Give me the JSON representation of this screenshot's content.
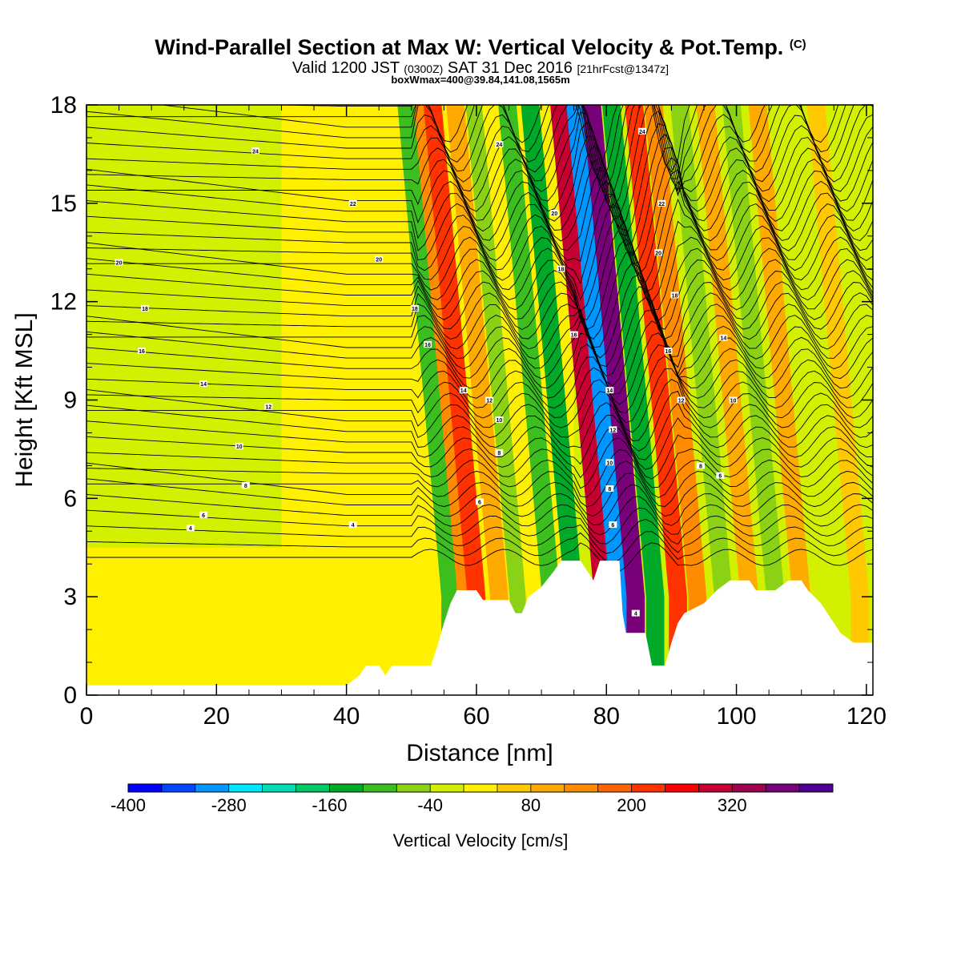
{
  "header": {
    "title_main": "Wind-Parallel Section at Max W: Vertical Velocity & Pot.Temp.",
    "title_mark": "(C)",
    "valid_prefix": "Valid 1200 JST",
    "valid_zone": "(0300Z)",
    "valid_date": "SAT 31 Dec 2016",
    "valid_fcst": "[21hrFcst@1347z]",
    "box_info": "boxWmax=400@39.84,141.08,1565m"
  },
  "chart_data": {
    "type": "heatmap",
    "xlabel": "Distance [nm]",
    "ylabel": "Height [Kft MSL]",
    "xlim": [
      0,
      121
    ],
    "ylim": [
      0,
      18
    ],
    "x_ticks": [
      "0",
      "20",
      "40",
      "60",
      "80",
      "100",
      "120"
    ],
    "y_ticks": [
      "0",
      "3",
      "6",
      "9",
      "12",
      "15",
      "18"
    ],
    "colorbar": {
      "label": "Vertical Velocity [cm/s]",
      "tick_labels": [
        "-400",
        "-280",
        "-160",
        "-40",
        "80",
        "200",
        "320"
      ],
      "tick_values": [
        -400,
        -280,
        -160,
        -40,
        80,
        200,
        320
      ],
      "bins": [
        {
          "min": -400,
          "max": -360,
          "color": "#0000ff"
        },
        {
          "min": -360,
          "max": -320,
          "color": "#0046ff"
        },
        {
          "min": -320,
          "max": -280,
          "color": "#0096ff"
        },
        {
          "min": -280,
          "max": -240,
          "color": "#00e6ff"
        },
        {
          "min": -240,
          "max": -200,
          "color": "#00dcb4"
        },
        {
          "min": -200,
          "max": -160,
          "color": "#00c864"
        },
        {
          "min": -160,
          "max": -120,
          "color": "#00aa28"
        },
        {
          "min": -120,
          "max": -80,
          "color": "#3cbe1e"
        },
        {
          "min": -80,
          "max": -40,
          "color": "#8cd214"
        },
        {
          "min": -40,
          "max": 0,
          "color": "#d2f000"
        },
        {
          "min": 0,
          "max": 40,
          "color": "#fff000"
        },
        {
          "min": 40,
          "max": 80,
          "color": "#ffc800"
        },
        {
          "min": 80,
          "max": 120,
          "color": "#ffaa00"
        },
        {
          "min": 120,
          "max": 160,
          "color": "#ff8c00"
        },
        {
          "min": 160,
          "max": 200,
          "color": "#ff6400"
        },
        {
          "min": 200,
          "max": 240,
          "color": "#ff3200"
        },
        {
          "min": 240,
          "max": 280,
          "color": "#ff0000"
        },
        {
          "min": 280,
          "max": 320,
          "color": "#c80032"
        },
        {
          "min": 320,
          "max": 360,
          "color": "#a00050"
        },
        {
          "min": 360,
          "max": 400,
          "color": "#780078"
        },
        {
          "min": 400,
          "max": 440,
          "color": "#500096"
        }
      ]
    },
    "background_field": [
      {
        "x_range": [
          0,
          121
        ],
        "y_range": [
          0,
          18
        ],
        "w": -20
      },
      {
        "x_range": [
          0,
          30
        ],
        "y_range": [
          0,
          4.5
        ],
        "w": 10
      },
      {
        "x_range": [
          30,
          75
        ],
        "y_range": [
          0,
          18
        ],
        "w": 10
      }
    ],
    "wave_bands": [
      {
        "x_base": 56,
        "w": -100
      },
      {
        "x_base": 58.5,
        "w": 120
      },
      {
        "x_base": 60,
        "w": 200
      },
      {
        "x_base": 63.5,
        "w": 100
      },
      {
        "x_base": 66.5,
        "w": -60
      },
      {
        "x_base": 69,
        "w": 20
      },
      {
        "x_base": 71.5,
        "w": -120
      },
      {
        "x_base": 75,
        "w": -160
      },
      {
        "x_base": 79.5,
        "w": 280
      },
      {
        "x_base": 82,
        "w": -320
      },
      {
        "x_base": 84.5,
        "w": 380
      },
      {
        "x_base": 87.5,
        "w": -140
      },
      {
        "x_base": 91,
        "w": 220
      },
      {
        "x_base": 94,
        "w": 120
      },
      {
        "x_base": 98,
        "w": -60
      },
      {
        "x_base": 102,
        "w": 100
      },
      {
        "x_base": 106,
        "w": -80
      },
      {
        "x_base": 110,
        "w": 80
      },
      {
        "x_base": 115,
        "w": -40
      },
      {
        "x_base": 119,
        "w": 60
      }
    ],
    "terrain_kft": [
      {
        "x": 0,
        "y": 0.3
      },
      {
        "x": 40,
        "y": 0.3
      },
      {
        "x": 42,
        "y": 0.6
      },
      {
        "x": 43,
        "y": 0.9
      },
      {
        "x": 45,
        "y": 0.9
      },
      {
        "x": 46,
        "y": 0.6
      },
      {
        "x": 47,
        "y": 0.9
      },
      {
        "x": 53,
        "y": 0.9
      },
      {
        "x": 54,
        "y": 1.5
      },
      {
        "x": 55,
        "y": 2.2
      },
      {
        "x": 56,
        "y": 2.8
      },
      {
        "x": 57,
        "y": 3.2
      },
      {
        "x": 60,
        "y": 3.2
      },
      {
        "x": 61,
        "y": 2.9
      },
      {
        "x": 65,
        "y": 2.9
      },
      {
        "x": 66,
        "y": 2.5
      },
      {
        "x": 67,
        "y": 2.5
      },
      {
        "x": 68,
        "y": 3.0
      },
      {
        "x": 70,
        "y": 3.3
      },
      {
        "x": 72,
        "y": 3.8
      },
      {
        "x": 73,
        "y": 4.1
      },
      {
        "x": 76,
        "y": 4.1
      },
      {
        "x": 77,
        "y": 3.8
      },
      {
        "x": 78,
        "y": 3.5
      },
      {
        "x": 79,
        "y": 4.1
      },
      {
        "x": 82,
        "y": 4.1
      },
      {
        "x": 82.5,
        "y": 2.5
      },
      {
        "x": 83,
        "y": 1.9
      },
      {
        "x": 86,
        "y": 1.9
      },
      {
        "x": 87,
        "y": 0.9
      },
      {
        "x": 89,
        "y": 0.9
      },
      {
        "x": 90,
        "y": 1.6
      },
      {
        "x": 91,
        "y": 2.2
      },
      {
        "x": 92,
        "y": 2.5
      },
      {
        "x": 95,
        "y": 2.8
      },
      {
        "x": 97,
        "y": 3.2
      },
      {
        "x": 99,
        "y": 3.5
      },
      {
        "x": 102,
        "y": 3.5
      },
      {
        "x": 103,
        "y": 3.2
      },
      {
        "x": 106,
        "y": 3.2
      },
      {
        "x": 108,
        "y": 3.5
      },
      {
        "x": 110,
        "y": 3.5
      },
      {
        "x": 111,
        "y": 3.2
      },
      {
        "x": 113,
        "y": 2.8
      },
      {
        "x": 114,
        "y": 2.5
      },
      {
        "x": 115,
        "y": 2.2
      },
      {
        "x": 116,
        "y": 1.9
      },
      {
        "x": 118,
        "y": 1.6
      },
      {
        "x": 121,
        "y": 1.6
      }
    ],
    "theta_contour_labels": [
      {
        "text": "24",
        "x": 26,
        "y": 16.6
      },
      {
        "text": "24",
        "x": 63.5,
        "y": 16.8
      },
      {
        "text": "24",
        "x": 85.5,
        "y": 17.2
      },
      {
        "text": "22",
        "x": 41,
        "y": 15.0
      },
      {
        "text": "22",
        "x": 88.5,
        "y": 15.0
      },
      {
        "text": "20",
        "x": 5,
        "y": 13.2
      },
      {
        "text": "20",
        "x": 45,
        "y": 13.3
      },
      {
        "text": "20",
        "x": 72,
        "y": 14.7
      },
      {
        "text": "20",
        "x": 88,
        "y": 13.5
      },
      {
        "text": "18",
        "x": 9,
        "y": 11.8
      },
      {
        "text": "18",
        "x": 50.5,
        "y": 11.8
      },
      {
        "text": "18",
        "x": 73,
        "y": 13.0
      },
      {
        "text": "18",
        "x": 90.5,
        "y": 12.2
      },
      {
        "text": "16",
        "x": 8.5,
        "y": 10.5
      },
      {
        "text": "16",
        "x": 52.5,
        "y": 10.7
      },
      {
        "text": "16",
        "x": 75,
        "y": 11.0
      },
      {
        "text": "16",
        "x": 89.5,
        "y": 10.5
      },
      {
        "text": "14",
        "x": 18,
        "y": 9.5
      },
      {
        "text": "14",
        "x": 58,
        "y": 9.3
      },
      {
        "text": "14",
        "x": 80.5,
        "y": 9.3
      },
      {
        "text": "14",
        "x": 98,
        "y": 10.9
      },
      {
        "text": "12",
        "x": 28,
        "y": 8.8
      },
      {
        "text": "12",
        "x": 62,
        "y": 9.0
      },
      {
        "text": "12",
        "x": 91.5,
        "y": 9.0
      },
      {
        "text": "12",
        "x": 81,
        "y": 8.1
      },
      {
        "text": "10",
        "x": 23.5,
        "y": 7.6
      },
      {
        "text": "10",
        "x": 63.5,
        "y": 8.4
      },
      {
        "text": "10",
        "x": 99.5,
        "y": 9.0
      },
      {
        "text": "10",
        "x": 80.5,
        "y": 7.1
      },
      {
        "text": "8",
        "x": 24.5,
        "y": 6.4
      },
      {
        "text": "8",
        "x": 63.5,
        "y": 7.4
      },
      {
        "text": "8",
        "x": 94.5,
        "y": 7.0
      },
      {
        "text": "8",
        "x": 80.5,
        "y": 6.3
      },
      {
        "text": "6",
        "x": 18,
        "y": 5.5
      },
      {
        "text": "6",
        "x": 60.5,
        "y": 5.9
      },
      {
        "text": "6",
        "x": 97.5,
        "y": 6.7
      },
      {
        "text": "6",
        "x": 81,
        "y": 5.2
      },
      {
        "text": "4",
        "x": 16,
        "y": 5.1
      },
      {
        "text": "4",
        "x": 41,
        "y": 5.2
      },
      {
        "text": "4",
        "x": 84.5,
        "y": 2.5
      }
    ]
  }
}
